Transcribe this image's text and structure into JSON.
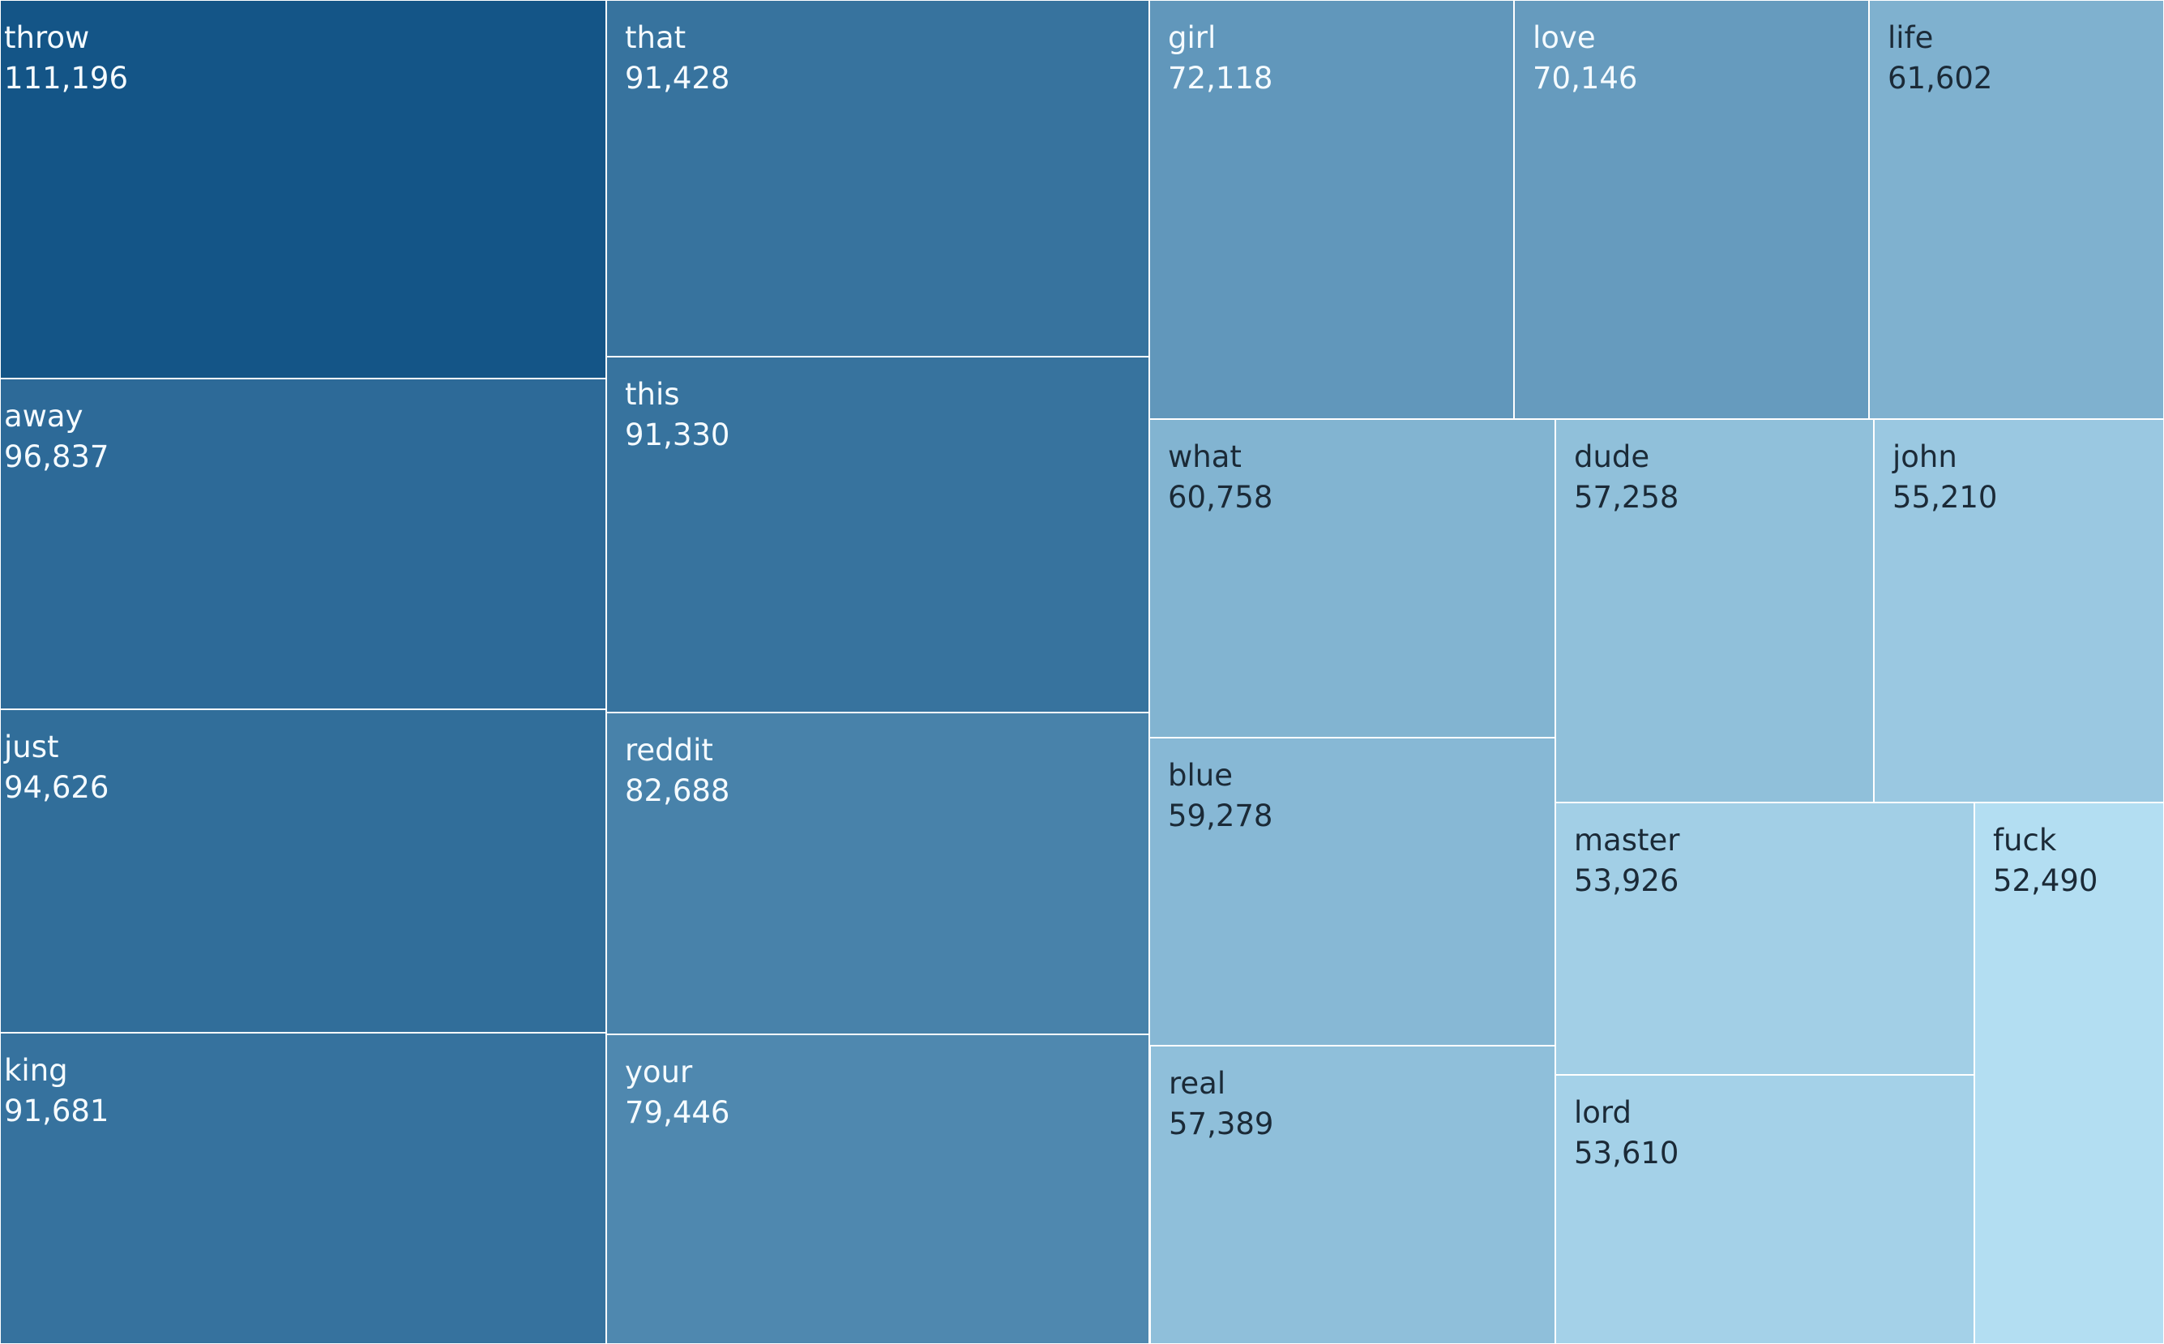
{
  "chart_data": {
    "type": "treemap",
    "color_scale": {
      "light": "#b3def2",
      "dark": "#145587"
    },
    "items": [
      {
        "label": "throw",
        "value_text": "111,196",
        "value": 111196
      },
      {
        "label": "away",
        "value_text": "96,837",
        "value": 96837
      },
      {
        "label": "just",
        "value_text": "94,626",
        "value": 94626
      },
      {
        "label": "king",
        "value_text": "91,681",
        "value": 91681
      },
      {
        "label": "that",
        "value_text": "91,428",
        "value": 91428
      },
      {
        "label": "this",
        "value_text": "91,330",
        "value": 91330
      },
      {
        "label": "reddit",
        "value_text": "82,688",
        "value": 82688
      },
      {
        "label": "your",
        "value_text": "79,446",
        "value": 79446
      },
      {
        "label": "girl",
        "value_text": "72,118",
        "value": 72118
      },
      {
        "label": "love",
        "value_text": "70,146",
        "value": 70146
      },
      {
        "label": "life",
        "value_text": "61,602",
        "value": 61602
      },
      {
        "label": "what",
        "value_text": "60,758",
        "value": 60758
      },
      {
        "label": "blue",
        "value_text": "59,278",
        "value": 59278
      },
      {
        "label": "real",
        "value_text": "57,389",
        "value": 57389
      },
      {
        "label": "dude",
        "value_text": "57,258",
        "value": 57258
      },
      {
        "label": "john",
        "value_text": "55,210",
        "value": 55210
      },
      {
        "label": "master",
        "value_text": "53,926",
        "value": 53926
      },
      {
        "label": "lord",
        "value_text": "53,610",
        "value": 53610
      },
      {
        "label": "fuck",
        "value_text": "52,490",
        "value": 52490
      }
    ]
  }
}
